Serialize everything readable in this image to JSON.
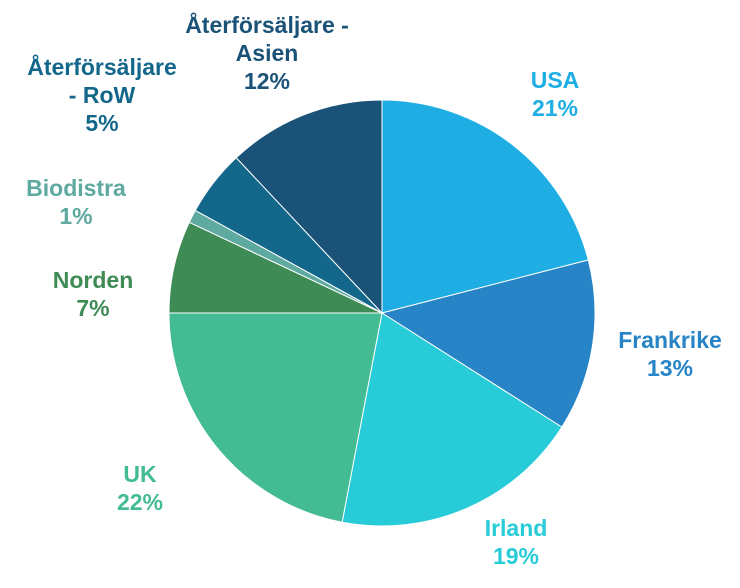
{
  "chart_data": {
    "type": "pie",
    "title": "",
    "legend": "none",
    "start_angle_deg": 0,
    "direction": "clockwise",
    "slices": [
      {
        "name_lines": [
          "USA"
        ],
        "value": 21,
        "label": "21%",
        "color": "#1FAEE3"
      },
      {
        "name_lines": [
          "Frankrike"
        ],
        "value": 13,
        "label": "13%",
        "color": "#2784C7"
      },
      {
        "name_lines": [
          "Irland"
        ],
        "value": 19,
        "label": "19%",
        "color": "#28CCD8"
      },
      {
        "name_lines": [
          "UK"
        ],
        "value": 22,
        "label": "22%",
        "color": "#43BB93"
      },
      {
        "name_lines": [
          "Norden"
        ],
        "value": 7,
        "label": "7%",
        "color": "#3F8B56"
      },
      {
        "name_lines": [
          "Biodistra"
        ],
        "value": 1,
        "label": "1%",
        "color": "#5EA9A0"
      },
      {
        "name_lines": [
          "Återförsäljare",
          "- RoW"
        ],
        "value": 5,
        "label": "5%",
        "color": "#12678A"
      },
      {
        "name_lines": [
          "Återförsäljare -",
          "Asien"
        ],
        "value": 12,
        "label": "12%",
        "color": "#1A5278"
      }
    ]
  }
}
